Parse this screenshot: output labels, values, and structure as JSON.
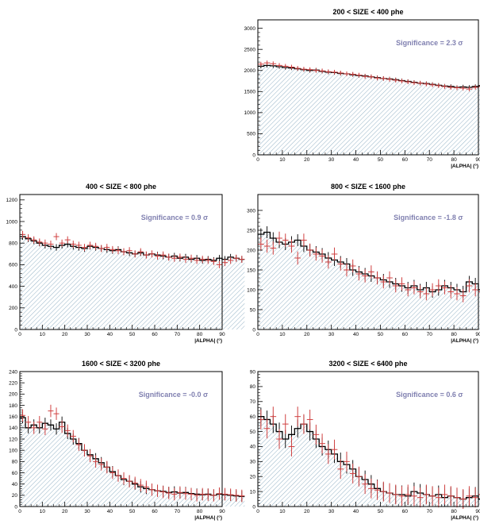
{
  "chart_data": [
    {
      "type": "histogram",
      "title": "200 < SIZE < 400 phe",
      "xlabel": "|ALPHA| (°)",
      "xlim": [
        0,
        90
      ],
      "ylim": [
        0,
        3200
      ],
      "yticks": [
        0,
        500,
        1000,
        1500,
        2000,
        2500,
        3000
      ],
      "xticks": [
        0,
        10,
        20,
        30,
        40,
        50,
        60,
        70,
        80,
        90
      ],
      "annotation": "Significance =  2.3 σ",
      "bin_width": 2.5,
      "series": [
        {
          "name": "",
          "style": "black-step-errors",
          "values": [
            2100,
            2120,
            2110,
            2090,
            2070,
            2060,
            2040,
            2020,
            2000,
            2010,
            1980,
            1960,
            1950,
            1930,
            1920,
            1900,
            1880,
            1870,
            1850,
            1830,
            1810,
            1800,
            1780,
            1760,
            1740,
            1720,
            1700,
            1690,
            1670,
            1650,
            1630,
            1620,
            1600,
            1610,
            1600,
            1620,
            1640,
            1620,
            1610,
            1630
          ]
        },
        {
          "name": "",
          "style": "red-cross",
          "values": [
            2150,
            2180,
            2160,
            2120,
            2100,
            2080,
            2050,
            2030,
            2020,
            2000,
            1990,
            1970,
            1960,
            1940,
            1920,
            1910,
            1890,
            1860,
            1850,
            1820,
            1810,
            1790,
            1770,
            1750,
            1730,
            1710,
            1700,
            1680,
            1660,
            1640,
            1620,
            1600,
            1590,
            1580,
            1560,
            1600,
            1620,
            1580,
            1560,
            1590
          ]
        }
      ],
      "errors": 50
    },
    {
      "type": "histogram",
      "title": "400 < SIZE < 800 phe",
      "xlabel": "|ALPHA| (°)",
      "xlim": [
        0,
        90
      ],
      "ylim": [
        0,
        1250
      ],
      "yticks": [
        0,
        200,
        400,
        600,
        800,
        1000,
        1200
      ],
      "xticks": [
        0,
        10,
        20,
        30,
        40,
        50,
        60,
        70,
        80,
        90
      ],
      "annotation": "Significance =  0.9 σ",
      "bin_width": 2.5,
      "series": [
        {
          "name": "",
          "style": "black-step-errors",
          "values": [
            860,
            840,
            820,
            800,
            780,
            770,
            760,
            780,
            790,
            770,
            760,
            750,
            770,
            760,
            750,
            740,
            730,
            740,
            720,
            710,
            700,
            710,
            690,
            700,
            690,
            680,
            670,
            680,
            660,
            670,
            650,
            660,
            640,
            650,
            640,
            660,
            650,
            670,
            660,
            650
          ]
        },
        {
          "name": "",
          "style": "red-cross",
          "values": [
            880,
            850,
            830,
            810,
            800,
            790,
            860,
            800,
            830,
            790,
            780,
            760,
            780,
            770,
            750,
            760,
            740,
            730,
            720,
            730,
            700,
            720,
            690,
            700,
            680,
            690,
            670,
            660,
            670,
            650,
            660,
            640,
            650,
            640,
            630,
            600,
            620,
            640,
            660,
            650
          ]
        }
      ],
      "errors": 30
    },
    {
      "type": "histogram",
      "title": "800 < SIZE < 1600 phe",
      "xlabel": "|ALPHA| (°)",
      "xlim": [
        0,
        90
      ],
      "ylim": [
        0,
        340
      ],
      "yticks": [
        0,
        50,
        100,
        150,
        200,
        250,
        300
      ],
      "xticks": [
        0,
        10,
        20,
        30,
        40,
        50,
        60,
        70,
        80,
        90
      ],
      "annotation": "Significance =  -1.8 σ",
      "bin_width": 2.5,
      "series": [
        {
          "name": "",
          "style": "black-step-errors",
          "values": [
            240,
            245,
            230,
            220,
            215,
            220,
            225,
            210,
            200,
            195,
            190,
            180,
            175,
            170,
            165,
            150,
            145,
            140,
            135,
            130,
            125,
            120,
            115,
            110,
            105,
            110,
            100,
            105,
            95,
            100,
            110,
            105,
            100,
            95,
            120,
            115,
            100,
            95,
            90,
            95
          ]
        },
        {
          "name": "",
          "style": "red-cross",
          "values": [
            215,
            210,
            205,
            230,
            225,
            210,
            180,
            225,
            200,
            190,
            185,
            170,
            190,
            165,
            150,
            160,
            140,
            135,
            145,
            130,
            120,
            130,
            110,
            115,
            100,
            105,
            95,
            90,
            100,
            110,
            105,
            95,
            90,
            85,
            110,
            100,
            95,
            90,
            95,
            85
          ]
        }
      ],
      "errors": 15
    },
    {
      "type": "histogram",
      "title": "1600 < SIZE < 3200 phe",
      "xlabel": "|ALPHA| (°)",
      "xlim": [
        0,
        90
      ],
      "ylim": [
        0,
        240
      ],
      "yticks": [
        0,
        20,
        40,
        60,
        80,
        100,
        120,
        140,
        160,
        180,
        200,
        220,
        240
      ],
      "xticks": [
        0,
        10,
        20,
        30,
        40,
        50,
        60,
        70,
        80,
        90
      ],
      "annotation": "Significance =  -0.0 σ",
      "bin_width": 2.5,
      "series": [
        {
          "name": "",
          "style": "black-step-errors",
          "values": [
            158,
            140,
            145,
            140,
            148,
            145,
            138,
            150,
            130,
            120,
            112,
            100,
            92,
            85,
            78,
            70,
            62,
            55,
            48,
            45,
            40,
            35,
            32,
            30,
            28,
            27,
            25,
            26,
            24,
            25,
            23,
            22,
            21,
            22,
            20,
            22,
            21,
            20,
            19,
            18
          ]
        },
        {
          "name": "",
          "style": "red-cross",
          "values": [
            162,
            150,
            140,
            150,
            138,
            170,
            165,
            142,
            135,
            125,
            110,
            100,
            90,
            80,
            75,
            70,
            60,
            55,
            50,
            45,
            42,
            38,
            35,
            30,
            28,
            26,
            24,
            22,
            25,
            23,
            22,
            20,
            22,
            21,
            20,
            23,
            22,
            21,
            20,
            19
          ]
        }
      ],
      "errors": 10
    },
    {
      "type": "histogram",
      "title": "3200 < SIZE < 6400 phe",
      "xlabel": "|ALPHA| (°)",
      "xlim": [
        0,
        90
      ],
      "ylim": [
        0,
        90
      ],
      "yticks": [
        0,
        10,
        20,
        30,
        40,
        50,
        60,
        70,
        80,
        90
      ],
      "xticks": [
        0,
        10,
        20,
        30,
        40,
        50,
        60,
        70,
        80,
        90
      ],
      "annotation": "Significance =  0.6 σ",
      "bin_width": 2.5,
      "series": [
        {
          "name": "",
          "style": "black-step-errors",
          "values": [
            60,
            58,
            55,
            50,
            45,
            48,
            52,
            55,
            50,
            45,
            40,
            38,
            35,
            30,
            28,
            25,
            20,
            18,
            15,
            12,
            10,
            9,
            8,
            8,
            7,
            10,
            9,
            8,
            7,
            8,
            6,
            7,
            6,
            5,
            6,
            7,
            5,
            6,
            5,
            5
          ]
        },
        {
          "name": "",
          "style": "red-cross",
          "values": [
            58,
            52,
            60,
            45,
            55,
            40,
            60,
            55,
            58,
            48,
            42,
            35,
            38,
            25,
            30,
            22,
            20,
            15,
            12,
            11,
            10,
            9,
            8,
            7,
            8,
            7,
            6,
            8,
            7,
            6,
            8,
            7,
            6,
            5,
            7,
            6,
            8,
            6,
            5,
            6
          ]
        }
      ],
      "errors": 6
    }
  ]
}
